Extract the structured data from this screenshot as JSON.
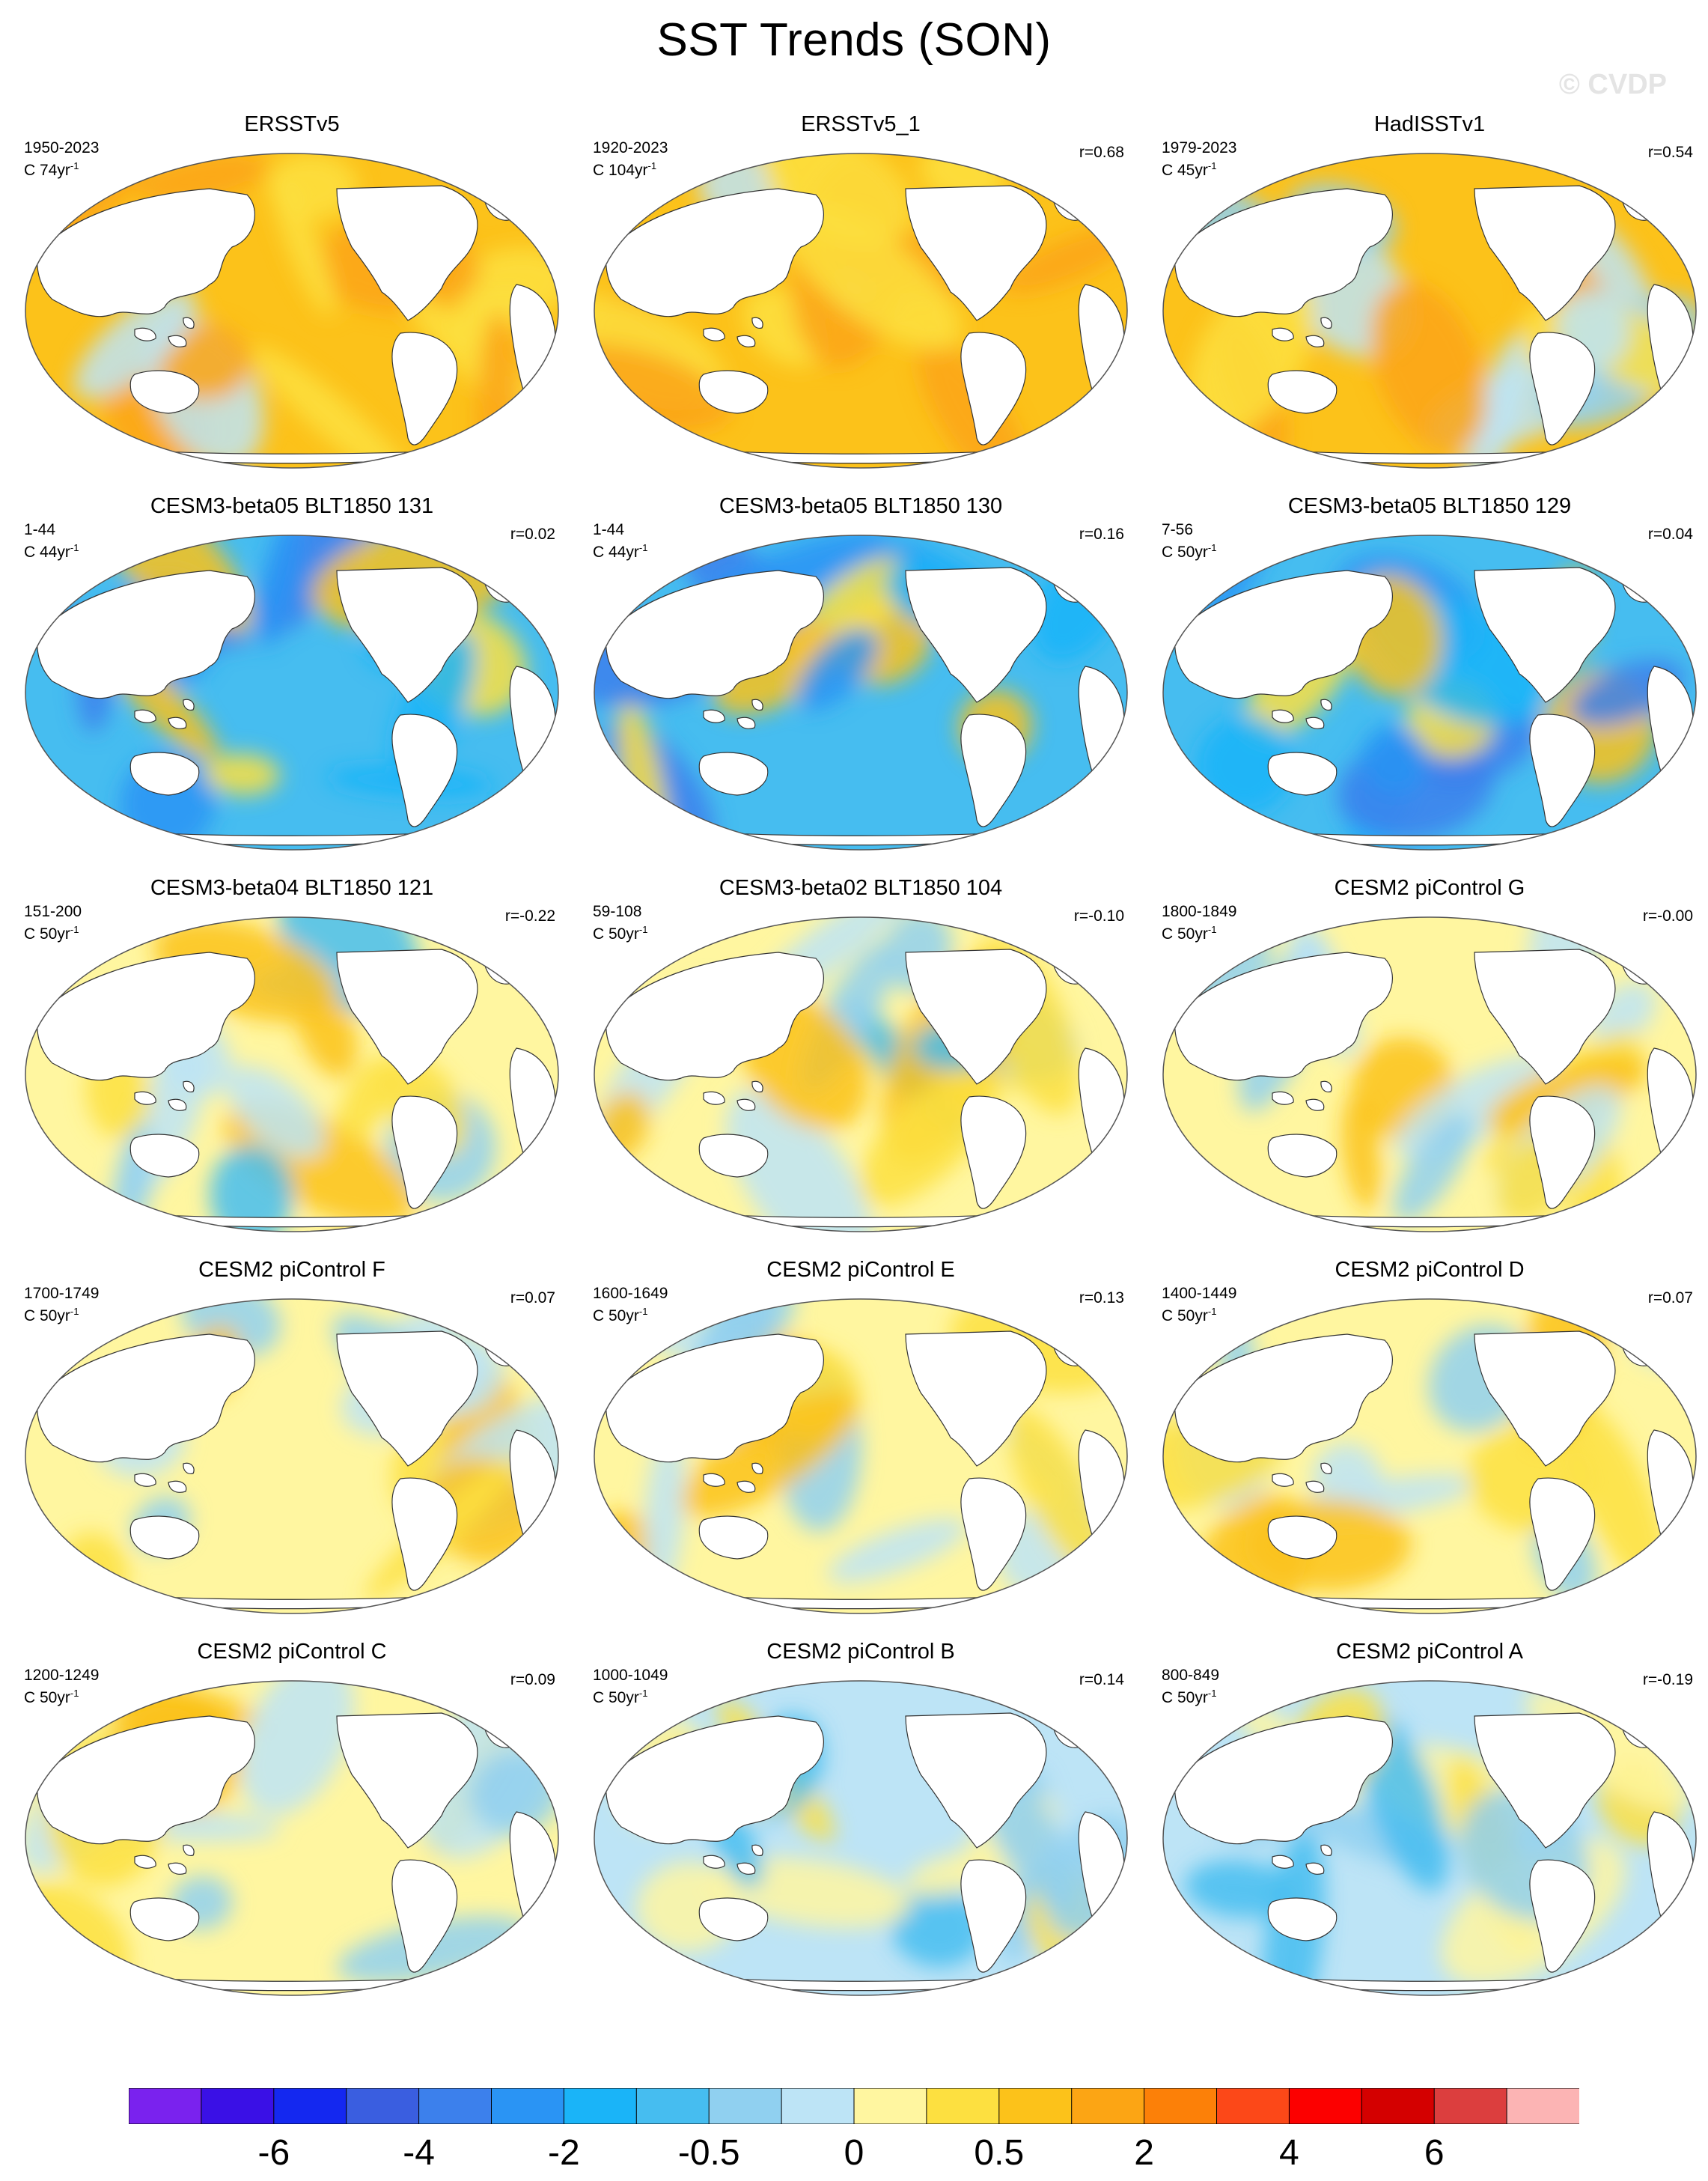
{
  "title": "SST Trends (SON)",
  "watermark": "© CVDP",
  "panels": [
    {
      "title": "ERSSTv5",
      "period": "1950-2023",
      "units": "C 74yr",
      "units_sup": "-1",
      "r": "",
      "field": "warm_strong"
    },
    {
      "title": "ERSSTv5_1",
      "period": "1920-2023",
      "units": "C 104yr",
      "units_sup": "-1",
      "r": "r=0.68",
      "field": "warm_strong"
    },
    {
      "title": "HadISSTv1",
      "period": "1979-2023",
      "units": "C 45yr",
      "units_sup": "-1",
      "r": "r=0.54",
      "field": "warm_mixed"
    },
    {
      "title": "CESM3-beta05 BLT1850 131",
      "period": "1-44",
      "units": "C 44yr",
      "units_sup": "-1",
      "r": "r=0.02",
      "field": "cold_strong"
    },
    {
      "title": "CESM3-beta05 BLT1850 130",
      "period": "1-44",
      "units": "C 44yr",
      "units_sup": "-1",
      "r": "r=0.16",
      "field": "cold_strong"
    },
    {
      "title": "CESM3-beta05 BLT1850 129",
      "period": "7-56",
      "units": "C 50yr",
      "units_sup": "-1",
      "r": "r=0.04",
      "field": "cold_strong"
    },
    {
      "title": "CESM3-beta04 BLT1850 121",
      "period": "151-200",
      "units": "C 50yr",
      "units_sup": "-1",
      "r": "r=-0.22",
      "field": "mixed_warm"
    },
    {
      "title": "CESM3-beta02 BLT1850 104",
      "period": "59-108",
      "units": "C 50yr",
      "units_sup": "-1",
      "r": "r=-0.10",
      "field": "mixed_warm"
    },
    {
      "title": "CESM2 piControl G",
      "period": "1800-1849",
      "units": "C 50yr",
      "units_sup": "-1",
      "r": "r=-0.00",
      "field": "mixed"
    },
    {
      "title": "CESM2 piControl F",
      "period": "1700-1749",
      "units": "C 50yr",
      "units_sup": "-1",
      "r": "r=0.07",
      "field": "mixed"
    },
    {
      "title": "CESM2 piControl E",
      "period": "1600-1649",
      "units": "C 50yr",
      "units_sup": "-1",
      "r": "r=0.13",
      "field": "mixed"
    },
    {
      "title": "CESM2 piControl D",
      "period": "1400-1449",
      "units": "C 50yr",
      "units_sup": "-1",
      "r": "r=0.07",
      "field": "mixed"
    },
    {
      "title": "CESM2 piControl C",
      "period": "1200-1249",
      "units": "C 50yr",
      "units_sup": "-1",
      "r": "r=0.09",
      "field": "mixed"
    },
    {
      "title": "CESM2 piControl B",
      "period": "1000-1049",
      "units": "C 50yr",
      "units_sup": "-1",
      "r": "r=0.14",
      "field": "mixed_cold"
    },
    {
      "title": "CESM2 piControl A",
      "period": "800-849",
      "units": "C 50yr",
      "units_sup": "-1",
      "r": "r=-0.19",
      "field": "mixed_cold"
    }
  ],
  "colorbar": {
    "colors": [
      "#7a22ee",
      "#3a10e6",
      "#1428f0",
      "#3a5ee0",
      "#3c80ec",
      "#2a94f4",
      "#1ab4f8",
      "#46bdf0",
      "#90d0f0",
      "#bde4f6",
      "#fff6a0",
      "#fde040",
      "#fcc21a",
      "#fca514",
      "#fc8008",
      "#fc4818",
      "#fc0000",
      "#d40000",
      "#dc3e3e",
      "#fcb4b4"
    ],
    "labels": [
      "-6",
      "-4",
      "-2",
      "-0.5",
      "0",
      "0.5",
      "2",
      "4",
      "6"
    ],
    "label_edges": [
      2,
      4,
      6,
      8,
      10,
      12,
      14,
      16,
      18
    ]
  },
  "field_palettes": {
    "warm_strong": {
      "base": "#fcc21a",
      "blobs": [
        "#fca514",
        "#fde040",
        "#fca514",
        "#fde040",
        "#bde4f6"
      ]
    },
    "warm_mixed": {
      "base": "#fcc21a",
      "blobs": [
        "#bde4f6",
        "#90d0f0",
        "#fde040",
        "#fca514",
        "#bde4f6"
      ]
    },
    "cold_strong": {
      "base": "#46bdf0",
      "blobs": [
        "#1ab4f8",
        "#3c80ec",
        "#fcc21a",
        "#2a94f4",
        "#fde040"
      ]
    },
    "mixed_warm": {
      "base": "#fff6a0",
      "blobs": [
        "#bde4f6",
        "#fde040",
        "#90d0f0",
        "#fcc21a",
        "#46bdf0"
      ]
    },
    "mixed": {
      "base": "#fff6a0",
      "blobs": [
        "#bde4f6",
        "#90d0f0",
        "#fde040",
        "#fcc21a",
        "#bde4f6"
      ]
    },
    "mixed_cold": {
      "base": "#bde4f6",
      "blobs": [
        "#fff6a0",
        "#90d0f0",
        "#fde040",
        "#46bdf0",
        "#fff6a0"
      ]
    }
  }
}
